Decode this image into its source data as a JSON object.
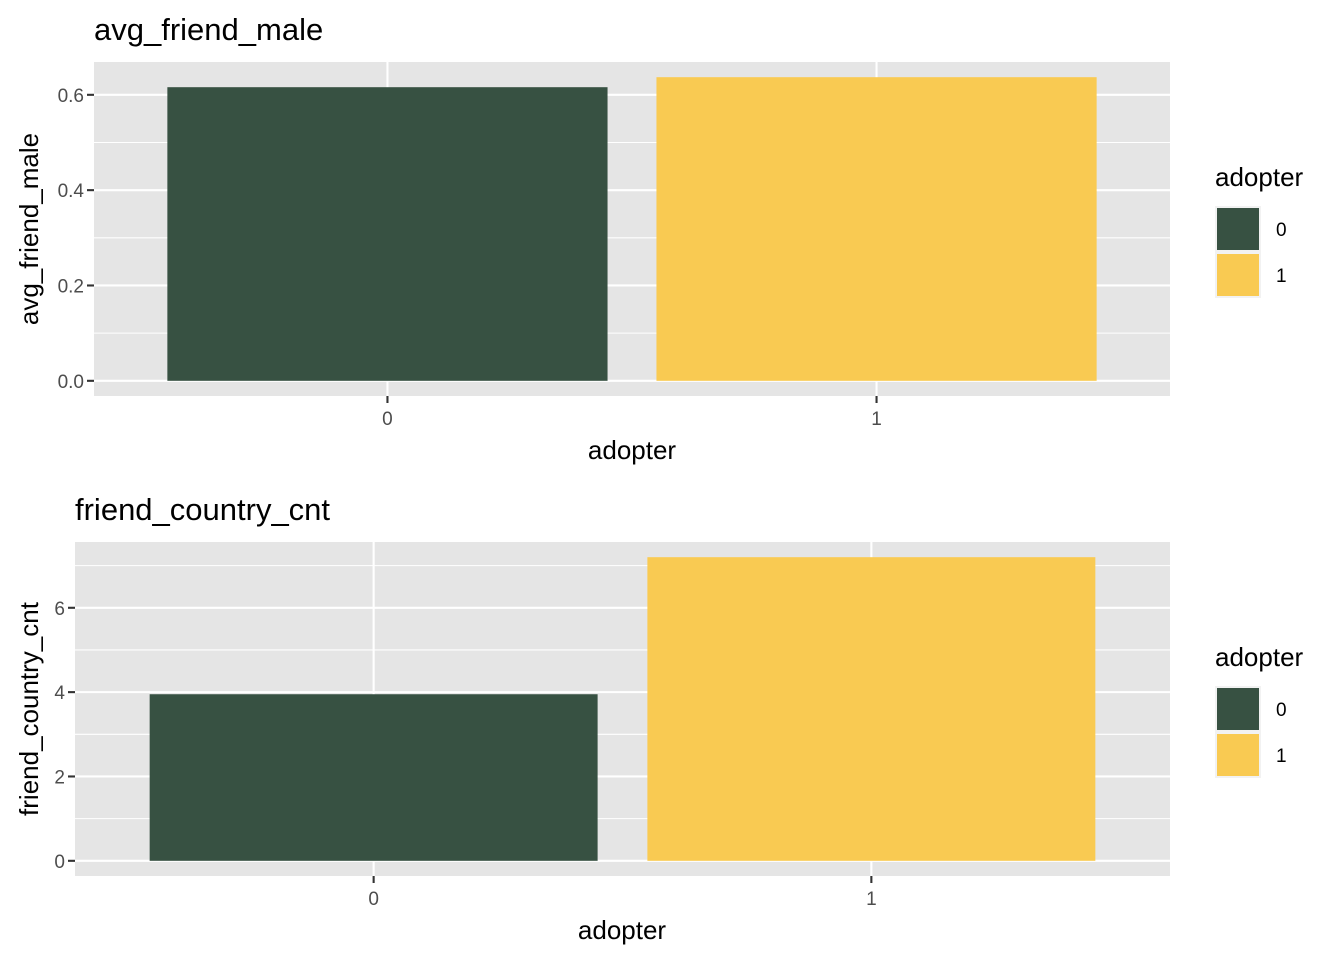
{
  "chart_data": [
    {
      "type": "bar",
      "title": "avg_friend_male",
      "xlabel": "adopter",
      "ylabel": "avg_friend_male",
      "categories": [
        "0",
        "1"
      ],
      "values": [
        0.616,
        0.637
      ],
      "ylim": [
        -0.03185,
        0.66885
      ],
      "yticks": [
        "0.0",
        "0.2",
        "0.4",
        "0.6"
      ],
      "ytick_values": [
        0,
        0.2,
        0.4,
        0.6
      ],
      "grid": true,
      "legend": {
        "title": "adopter",
        "placement": "right",
        "items": [
          {
            "label": "0",
            "color": "#375142"
          },
          {
            "label": "1",
            "color": "#f9ca52"
          }
        ]
      }
    },
    {
      "type": "bar",
      "title": "friend_country_cnt",
      "xlabel": "adopter",
      "ylabel": "friend_country_cnt",
      "categories": [
        "0",
        "1"
      ],
      "values": [
        3.95,
        7.2
      ],
      "ylim": [
        -0.36,
        7.56
      ],
      "yticks": [
        "0",
        "2",
        "4",
        "6"
      ],
      "ytick_values": [
        0,
        2,
        4,
        6
      ],
      "grid": true,
      "legend": {
        "title": "adopter",
        "placement": "right",
        "items": [
          {
            "label": "0",
            "color": "#375142"
          },
          {
            "label": "1",
            "color": "#f9ca52"
          }
        ]
      }
    }
  ]
}
